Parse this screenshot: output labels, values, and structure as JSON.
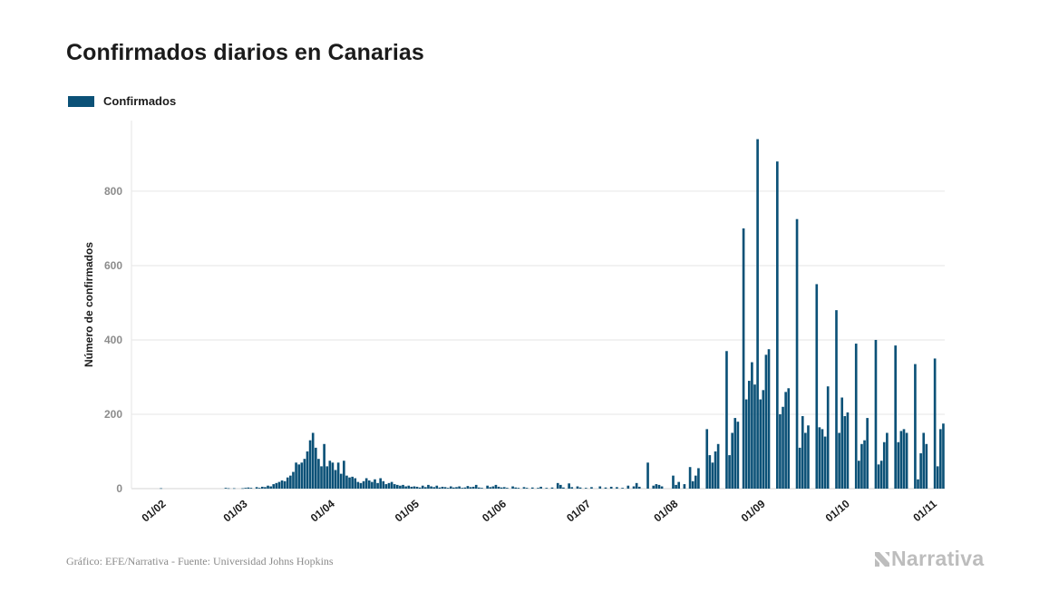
{
  "title": "Confirmados diarios en Canarias",
  "legend": {
    "label": "Confirmados"
  },
  "footer": {
    "source": "Gráfico: EFE/Narrativa - Fuente: Universidad Johns Hopkins",
    "brand": "Narrativa"
  },
  "colors": {
    "bar": "#0b5177",
    "grid": "#e6e6e6",
    "tick": "#8c8c8c",
    "brand": "#bdbdbd"
  },
  "chart_data": {
    "type": "bar",
    "ylabel": "Número de confirmados",
    "xlabel": "",
    "ylim": [
      0,
      990
    ],
    "yticks": [
      0,
      200,
      400,
      600,
      800
    ],
    "grid": true,
    "legend_position": "top-left",
    "x_ticks": [
      "01/02",
      "01/03",
      "01/04",
      "01/05",
      "01/06",
      "01/07",
      "01/08",
      "01/09",
      "01/10",
      "01/11"
    ],
    "x_range": [
      "2020-01-22",
      "2020-11-05"
    ],
    "series": [
      {
        "name": "Confirmados",
        "points": [
          [
            "2020-02-01",
            1
          ],
          [
            "2020-02-24",
            2
          ],
          [
            "2020-02-25",
            1
          ],
          [
            "2020-02-27",
            1
          ],
          [
            "2020-03-01",
            1
          ],
          [
            "2020-03-02",
            2
          ],
          [
            "2020-03-03",
            3
          ],
          [
            "2020-03-04",
            2
          ],
          [
            "2020-03-06",
            4
          ],
          [
            "2020-03-07",
            2
          ],
          [
            "2020-03-08",
            5
          ],
          [
            "2020-03-09",
            4
          ],
          [
            "2020-03-10",
            8
          ],
          [
            "2020-03-11",
            6
          ],
          [
            "2020-03-12",
            12
          ],
          [
            "2020-03-13",
            15
          ],
          [
            "2020-03-14",
            18
          ],
          [
            "2020-03-15",
            22
          ],
          [
            "2020-03-16",
            20
          ],
          [
            "2020-03-17",
            30
          ],
          [
            "2020-03-18",
            35
          ],
          [
            "2020-03-19",
            45
          ],
          [
            "2020-03-20",
            70
          ],
          [
            "2020-03-21",
            65
          ],
          [
            "2020-03-22",
            70
          ],
          [
            "2020-03-23",
            80
          ],
          [
            "2020-03-24",
            100
          ],
          [
            "2020-03-25",
            130
          ],
          [
            "2020-03-26",
            150
          ],
          [
            "2020-03-27",
            110
          ],
          [
            "2020-03-28",
            80
          ],
          [
            "2020-03-29",
            60
          ],
          [
            "2020-03-30",
            120
          ],
          [
            "2020-03-31",
            60
          ],
          [
            "2020-04-01",
            75
          ],
          [
            "2020-04-02",
            70
          ],
          [
            "2020-04-03",
            50
          ],
          [
            "2020-04-04",
            70
          ],
          [
            "2020-04-05",
            40
          ],
          [
            "2020-04-06",
            75
          ],
          [
            "2020-04-07",
            35
          ],
          [
            "2020-04-08",
            30
          ],
          [
            "2020-04-09",
            32
          ],
          [
            "2020-04-10",
            28
          ],
          [
            "2020-04-11",
            18
          ],
          [
            "2020-04-12",
            15
          ],
          [
            "2020-04-13",
            20
          ],
          [
            "2020-04-14",
            28
          ],
          [
            "2020-04-15",
            22
          ],
          [
            "2020-04-16",
            18
          ],
          [
            "2020-04-17",
            25
          ],
          [
            "2020-04-18",
            15
          ],
          [
            "2020-04-19",
            28
          ],
          [
            "2020-04-20",
            20
          ],
          [
            "2020-04-21",
            12
          ],
          [
            "2020-04-22",
            15
          ],
          [
            "2020-04-23",
            18
          ],
          [
            "2020-04-24",
            12
          ],
          [
            "2020-04-25",
            10
          ],
          [
            "2020-04-26",
            8
          ],
          [
            "2020-04-27",
            10
          ],
          [
            "2020-04-28",
            6
          ],
          [
            "2020-04-29",
            8
          ],
          [
            "2020-04-30",
            5
          ],
          [
            "2020-05-01",
            6
          ],
          [
            "2020-05-02",
            5
          ],
          [
            "2020-05-03",
            3
          ],
          [
            "2020-05-04",
            8
          ],
          [
            "2020-05-05",
            4
          ],
          [
            "2020-05-06",
            10
          ],
          [
            "2020-05-07",
            6
          ],
          [
            "2020-05-08",
            4
          ],
          [
            "2020-05-09",
            8
          ],
          [
            "2020-05-10",
            3
          ],
          [
            "2020-05-11",
            5
          ],
          [
            "2020-05-12",
            4
          ],
          [
            "2020-05-13",
            2
          ],
          [
            "2020-05-14",
            6
          ],
          [
            "2020-05-15",
            3
          ],
          [
            "2020-05-16",
            4
          ],
          [
            "2020-05-17",
            6
          ],
          [
            "2020-05-18",
            2
          ],
          [
            "2020-05-19",
            3
          ],
          [
            "2020-05-20",
            7
          ],
          [
            "2020-05-21",
            4
          ],
          [
            "2020-05-22",
            5
          ],
          [
            "2020-05-23",
            10
          ],
          [
            "2020-05-24",
            3
          ],
          [
            "2020-05-25",
            2
          ],
          [
            "2020-05-27",
            8
          ],
          [
            "2020-05-28",
            4
          ],
          [
            "2020-05-29",
            6
          ],
          [
            "2020-05-30",
            10
          ],
          [
            "2020-05-31",
            5
          ],
          [
            "2020-06-01",
            3
          ],
          [
            "2020-06-02",
            4
          ],
          [
            "2020-06-03",
            2
          ],
          [
            "2020-06-05",
            6
          ],
          [
            "2020-06-06",
            3
          ],
          [
            "2020-06-07",
            2
          ],
          [
            "2020-06-09",
            4
          ],
          [
            "2020-06-10",
            2
          ],
          [
            "2020-06-12",
            3
          ],
          [
            "2020-06-14",
            2
          ],
          [
            "2020-06-15",
            5
          ],
          [
            "2020-06-17",
            2
          ],
          [
            "2020-06-19",
            3
          ],
          [
            "2020-06-21",
            15
          ],
          [
            "2020-06-22",
            10
          ],
          [
            "2020-06-23",
            3
          ],
          [
            "2020-06-25",
            14
          ],
          [
            "2020-06-26",
            4
          ],
          [
            "2020-06-28",
            6
          ],
          [
            "2020-06-29",
            3
          ],
          [
            "2020-07-01",
            2
          ],
          [
            "2020-07-03",
            4
          ],
          [
            "2020-07-06",
            6
          ],
          [
            "2020-07-08",
            3
          ],
          [
            "2020-07-10",
            5
          ],
          [
            "2020-07-12",
            4
          ],
          [
            "2020-07-14",
            2
          ],
          [
            "2020-07-16",
            8
          ],
          [
            "2020-07-18",
            6
          ],
          [
            "2020-07-19",
            15
          ],
          [
            "2020-07-20",
            5
          ],
          [
            "2020-07-23",
            70
          ],
          [
            "2020-07-25",
            8
          ],
          [
            "2020-07-26",
            12
          ],
          [
            "2020-07-27",
            10
          ],
          [
            "2020-07-28",
            6
          ],
          [
            "2020-08-01",
            35
          ],
          [
            "2020-08-02",
            10
          ],
          [
            "2020-08-03",
            18
          ],
          [
            "2020-08-05",
            12
          ],
          [
            "2020-08-07",
            58
          ],
          [
            "2020-08-08",
            20
          ],
          [
            "2020-08-09",
            35
          ],
          [
            "2020-08-10",
            55
          ],
          [
            "2020-08-13",
            160
          ],
          [
            "2020-08-14",
            90
          ],
          [
            "2020-08-15",
            70
          ],
          [
            "2020-08-16",
            100
          ],
          [
            "2020-08-17",
            120
          ],
          [
            "2020-08-20",
            370
          ],
          [
            "2020-08-21",
            90
          ],
          [
            "2020-08-22",
            150
          ],
          [
            "2020-08-23",
            190
          ],
          [
            "2020-08-24",
            180
          ],
          [
            "2020-08-26",
            700
          ],
          [
            "2020-08-27",
            240
          ],
          [
            "2020-08-28",
            290
          ],
          [
            "2020-08-29",
            340
          ],
          [
            "2020-08-30",
            280
          ],
          [
            "2020-08-31",
            940
          ],
          [
            "2020-09-01",
            240
          ],
          [
            "2020-09-02",
            265
          ],
          [
            "2020-09-03",
            360
          ],
          [
            "2020-09-04",
            375
          ],
          [
            "2020-09-07",
            880
          ],
          [
            "2020-09-08",
            200
          ],
          [
            "2020-09-09",
            220
          ],
          [
            "2020-09-10",
            260
          ],
          [
            "2020-09-11",
            270
          ],
          [
            "2020-09-14",
            725
          ],
          [
            "2020-09-15",
            110
          ],
          [
            "2020-09-16",
            195
          ],
          [
            "2020-09-17",
            150
          ],
          [
            "2020-09-18",
            170
          ],
          [
            "2020-09-21",
            550
          ],
          [
            "2020-09-22",
            165
          ],
          [
            "2020-09-23",
            160
          ],
          [
            "2020-09-24",
            140
          ],
          [
            "2020-09-25",
            275
          ],
          [
            "2020-09-28",
            480
          ],
          [
            "2020-09-29",
            150
          ],
          [
            "2020-09-30",
            245
          ],
          [
            "2020-10-01",
            195
          ],
          [
            "2020-10-02",
            205
          ],
          [
            "2020-10-05",
            390
          ],
          [
            "2020-10-06",
            75
          ],
          [
            "2020-10-07",
            120
          ],
          [
            "2020-10-08",
            130
          ],
          [
            "2020-10-09",
            190
          ],
          [
            "2020-10-12",
            400
          ],
          [
            "2020-10-13",
            65
          ],
          [
            "2020-10-14",
            75
          ],
          [
            "2020-10-15",
            125
          ],
          [
            "2020-10-16",
            150
          ],
          [
            "2020-10-19",
            385
          ],
          [
            "2020-10-20",
            125
          ],
          [
            "2020-10-21",
            155
          ],
          [
            "2020-10-22",
            160
          ],
          [
            "2020-10-23",
            150
          ],
          [
            "2020-10-26",
            335
          ],
          [
            "2020-10-27",
            25
          ],
          [
            "2020-10-28",
            95
          ],
          [
            "2020-10-29",
            150
          ],
          [
            "2020-10-30",
            120
          ],
          [
            "2020-11-02",
            350
          ],
          [
            "2020-11-03",
            60
          ],
          [
            "2020-11-04",
            160
          ],
          [
            "2020-11-05",
            175
          ]
        ]
      }
    ]
  }
}
